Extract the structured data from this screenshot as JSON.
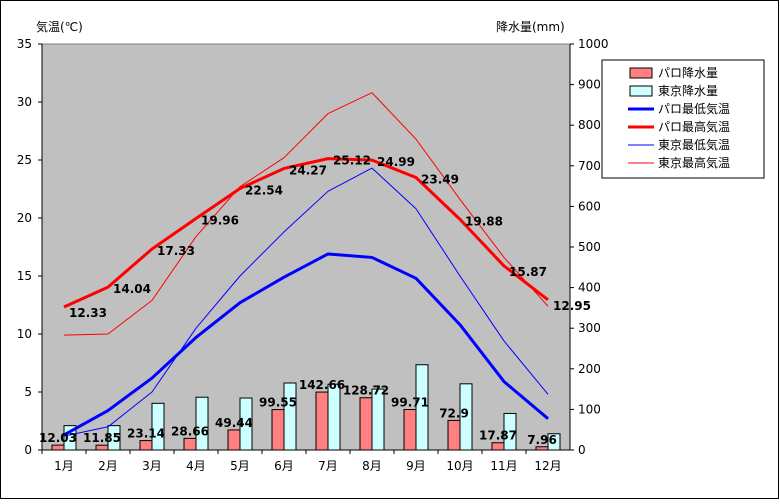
{
  "chart_data": {
    "type": "bar+line",
    "y_left_label": "気温(℃)",
    "y_right_label": "降水量(mm)",
    "y_left_range": [
      0,
      35
    ],
    "y_left_ticks": [
      "0",
      "5",
      "10",
      "15",
      "20",
      "25",
      "30",
      "35"
    ],
    "y_right_range": [
      0,
      1000
    ],
    "y_right_ticks": [
      "0",
      "100",
      "200",
      "300",
      "400",
      "500",
      "600",
      "700",
      "800",
      "900",
      "1000"
    ],
    "categories": [
      "1月",
      "2月",
      "3月",
      "4月",
      "5月",
      "6月",
      "7月",
      "8月",
      "9月",
      "10月",
      "11月",
      "12月"
    ],
    "bar_series": [
      {
        "name": "パロ降水量",
        "color": "#ff8080",
        "axis": "right",
        "values": [
          12.03,
          11.85,
          23.14,
          28.66,
          49.44,
          99.55,
          142.66,
          128.72,
          99.71,
          72.9,
          17.87,
          7.96
        ],
        "labels": [
          "12.03",
          "11.85",
          "23.14",
          "28.66",
          "49.44",
          "99.55",
          "142.66",
          "128.72",
          "99.71",
          "72.9",
          "17.87",
          "7.96"
        ]
      },
      {
        "name": "東京降水量",
        "color": "#ccffff",
        "axis": "right",
        "values": [
          60,
          60,
          115,
          130,
          128,
          165,
          162,
          150,
          210,
          163,
          90,
          40
        ]
      }
    ],
    "line_series": [
      {
        "name": "パロ最低気温",
        "color": "#0000ff",
        "width": 3,
        "axis": "left",
        "values": [
          1.3,
          3.4,
          6.2,
          9.7,
          12.7,
          14.9,
          16.9,
          16.6,
          14.8,
          10.8,
          5.9,
          2.7
        ]
      },
      {
        "name": "パロ最高気温",
        "color": "#ff0000",
        "width": 3,
        "axis": "left",
        "values": [
          12.33,
          14.04,
          17.33,
          19.96,
          22.54,
          24.27,
          25.12,
          24.99,
          23.49,
          19.88,
          15.87,
          12.95
        ],
        "labels": [
          "12.33",
          "14.04",
          "17.33",
          "19.96",
          "22.54",
          "24.27",
          "25.12",
          "24.99",
          "23.49",
          "19.88",
          "15.87",
          "12.95"
        ]
      },
      {
        "name": "東京最低気温",
        "color": "#0000ff",
        "width": 1,
        "axis": "left",
        "values": [
          1.2,
          2.0,
          5.0,
          10.5,
          15.0,
          18.8,
          22.3,
          24.3,
          20.8,
          15.0,
          9.4,
          4.8
        ]
      },
      {
        "name": "東京最高気温",
        "color": "#ff0000",
        "width": 1,
        "axis": "left",
        "values": [
          9.9,
          10.0,
          12.9,
          18.4,
          22.7,
          25.2,
          29.0,
          30.8,
          26.8,
          21.6,
          16.6,
          12.4
        ]
      }
    ],
    "legend_order": [
      "パロ降水量",
      "東京降水量",
      "パロ最低気温",
      "パロ最高気温",
      "東京最低気温",
      "東京最高気温"
    ],
    "legend_position": "top-right",
    "plot_background": "#c0c0c0",
    "grid": false
  }
}
